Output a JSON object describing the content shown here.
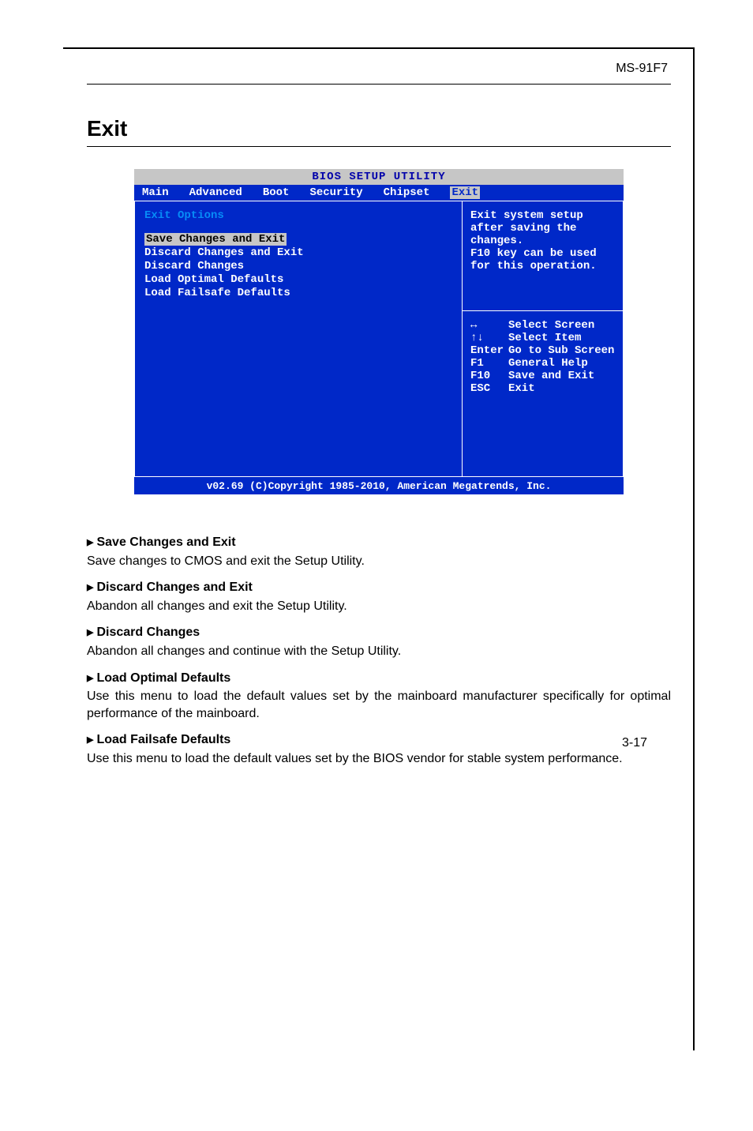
{
  "header": {
    "device": "MS-91F7"
  },
  "section": {
    "title": "Exit"
  },
  "bios": {
    "title": "BIOS SETUP UTILITY",
    "tabs": [
      "Main",
      "Advanced",
      "Boot",
      "Security",
      "Chipset"
    ],
    "active_tab": "Exit",
    "left": {
      "heading": "Exit Options",
      "options": [
        "Save Changes and Exit",
        "Discard Changes and Exit",
        "Discard Changes",
        "",
        "Load Optimal Defaults",
        "Load Failsafe Defaults"
      ]
    },
    "right": {
      "help_lines": [
        "Exit system setup",
        "after saving the",
        "changes.",
        "",
        "F10 key can be used",
        "for this operation."
      ],
      "keys": [
        {
          "k": "↔",
          "d": "Select Screen"
        },
        {
          "k": "↑↓",
          "d": "Select Item"
        },
        {
          "k": "Enter",
          "d": "Go to Sub Screen"
        },
        {
          "k": "F1",
          "d": "General Help"
        },
        {
          "k": "F10",
          "d": "Save and Exit"
        },
        {
          "k": "ESC",
          "d": "Exit"
        }
      ]
    },
    "footer": "v02.69 (C)Copyright 1985-2010, American Megatrends, Inc."
  },
  "descriptions": [
    {
      "title": "Save Changes and Exit",
      "body": "Save changes to CMOS and exit the Setup Utility."
    },
    {
      "title": "Discard Changes and Exit",
      "body": "Abandon all changes and exit the Setup Utility."
    },
    {
      "title": "Discard Changes",
      "body": "Abandon all changes and continue with the Setup Utility."
    },
    {
      "title": "Load Optimal Defaults",
      "body": "Use this menu to load the default values set by the mainboard manufacturer specifically for optimal performance of the mainboard."
    },
    {
      "title": "Load Failsafe Defaults",
      "body": "Use this menu to load the default values set by the BIOS vendor for stable system performance."
    }
  ],
  "page_num": "3-17",
  "colors": {
    "bios_blue": "#0028c8",
    "bios_gray": "#c6c6c6",
    "bios_cyan": "#078cf7"
  }
}
